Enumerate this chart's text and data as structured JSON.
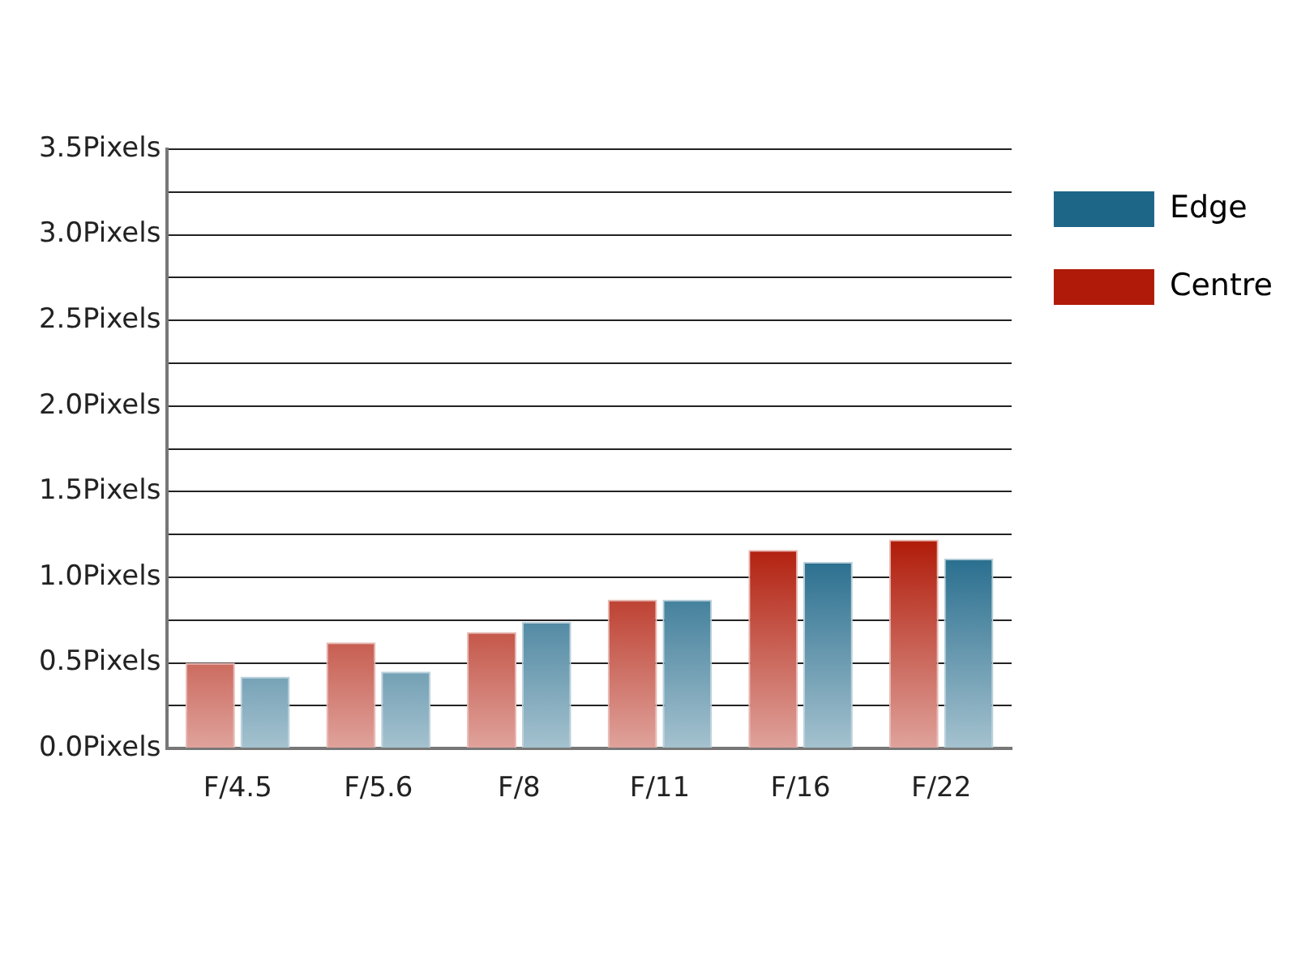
{
  "chart_data": {
    "type": "bar",
    "categories": [
      "F/4.5",
      "F/5.6",
      "F/8",
      "F/11",
      "F/16",
      "F/22"
    ],
    "series": [
      {
        "name": "Centre",
        "color": "#b01a08",
        "values": [
          0.5,
          0.62,
          0.68,
          0.87,
          1.16,
          1.22
        ]
      },
      {
        "name": "Edge",
        "color": "#1d6688",
        "values": [
          0.42,
          0.45,
          0.74,
          0.87,
          1.09,
          1.11
        ]
      }
    ],
    "ylim": [
      0,
      3.5
    ],
    "yticks": [
      {
        "value": 0,
        "label": "0.0Pixels"
      },
      {
        "value": 0.25,
        "label": null
      },
      {
        "value": 0.5,
        "label": "0.5Pixels"
      },
      {
        "value": 0.75,
        "label": null
      },
      {
        "value": 1,
        "label": "1.0Pixels"
      },
      {
        "value": 1.25,
        "label": null
      },
      {
        "value": 1.5,
        "label": "1.5Pixels"
      },
      {
        "value": 1.75,
        "label": null
      },
      {
        "value": 2,
        "label": "2.0Pixels"
      },
      {
        "value": 2.25,
        "label": null
      },
      {
        "value": 2.5,
        "label": "2.5Pixels"
      },
      {
        "value": 2.75,
        "label": null
      },
      {
        "value": 3,
        "label": "3.0Pixels"
      },
      {
        "value": 3.25,
        "label": null
      },
      {
        "value": 3.5,
        "label": "3.5Pixels"
      }
    ],
    "grid": "y",
    "legend": "top right"
  }
}
